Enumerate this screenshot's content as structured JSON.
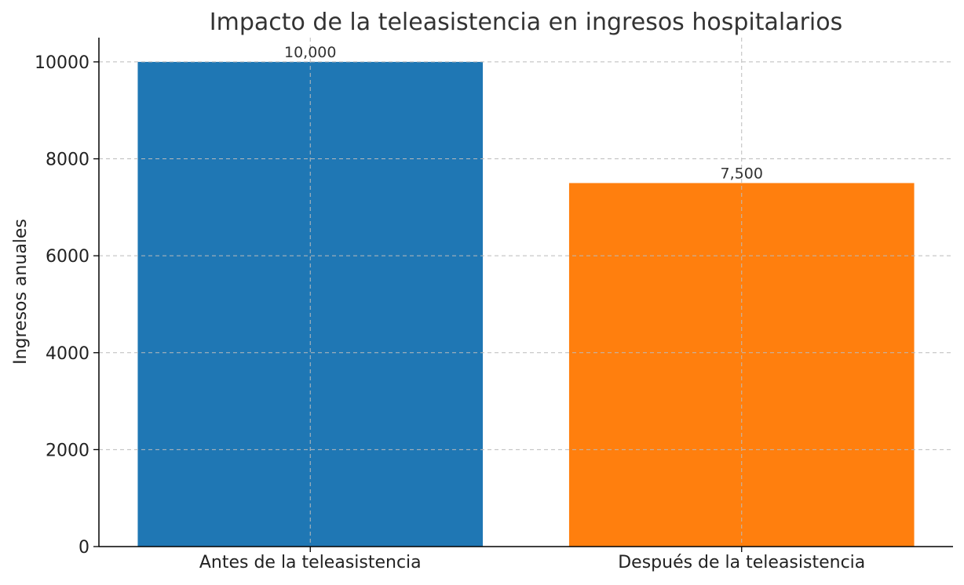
{
  "chart_data": {
    "type": "bar",
    "title": "Impacto de la teleasistencia en ingresos hospitalarios",
    "xlabel": "",
    "ylabel": "Ingresos anuales",
    "categories": [
      "Antes de la teleasistencia",
      "Después de la teleasistencia"
    ],
    "values": [
      10000,
      7500
    ],
    "data_labels": [
      "10,000",
      "7,500"
    ],
    "colors": [
      "#1f77b4",
      "#ff7f0e"
    ],
    "ylim": [
      0,
      10500
    ],
    "yticks": [
      0,
      2000,
      4000,
      6000,
      8000,
      10000
    ],
    "ytick_labels": [
      "0",
      "2000",
      "4000",
      "6000",
      "8000",
      "10000"
    ],
    "grid": true,
    "legend": "none"
  }
}
